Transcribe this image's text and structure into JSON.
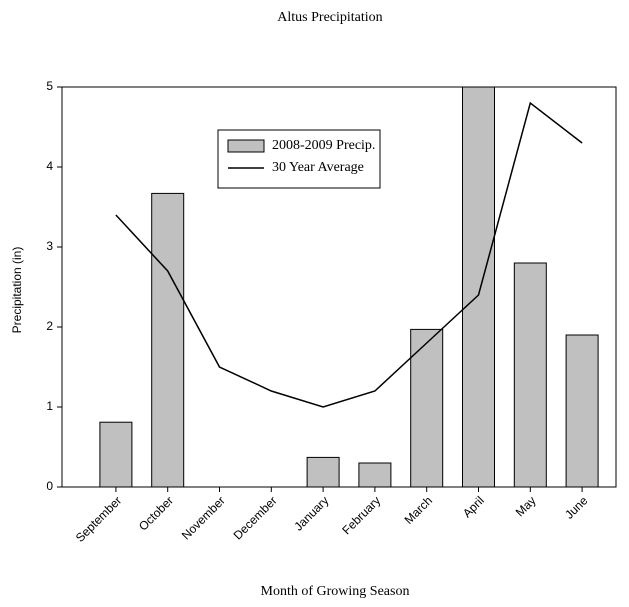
{
  "chart_data": {
    "type": "bar",
    "title": "Altus Precipitation",
    "xlabel": "Month of Growing Season",
    "ylabel": "Precipitation (in)",
    "categories": [
      "September",
      "October",
      "November",
      "December",
      "January",
      "February",
      "March",
      "April",
      "May",
      "June"
    ],
    "series": [
      {
        "name": "2008-2009 Precip.",
        "type": "bar",
        "color": "#c0c0c0",
        "values": [
          0.81,
          3.67,
          0,
          0,
          0.37,
          0.3,
          1.97,
          5,
          2.8,
          1.9
        ]
      },
      {
        "name": "30 Year Average",
        "type": "line",
        "color": "#000000",
        "values": [
          3.4,
          2.7,
          1.5,
          1.2,
          1.0,
          1.2,
          1.8,
          2.4,
          4.8,
          4.3
        ]
      }
    ],
    "ylim": [
      0,
      5
    ],
    "yticks": [
      0,
      1,
      2,
      3,
      4,
      5
    ],
    "grid": false
  }
}
